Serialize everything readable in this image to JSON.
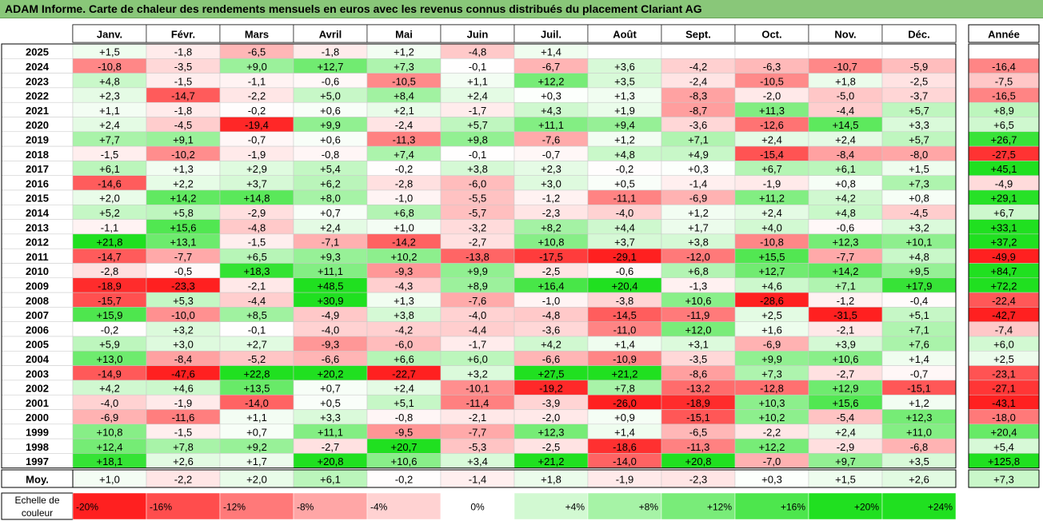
{
  "title": "ADAM Informe. Carte de chaleur des rendements mensuels en euros avec les revenus connus distribués du placement Clariant AG",
  "chart_data": {
    "type": "heatmap",
    "months": [
      "Janv.",
      "Févr.",
      "Mars",
      "Avril",
      "Mai",
      "Juin",
      "Juil.",
      "Août",
      "Sept.",
      "Oct.",
      "Nov.",
      "Déc."
    ],
    "annual_header": "Année",
    "years": [
      "2025",
      "2024",
      "2023",
      "2022",
      "2021",
      "2020",
      "2019",
      "2018",
      "2017",
      "2016",
      "2015",
      "2014",
      "2013",
      "2012",
      "2011",
      "2010",
      "2009",
      "2008",
      "2007",
      "2006",
      "2005",
      "2004",
      "2003",
      "2002",
      "2001",
      "2000",
      "1999",
      "1998",
      "1997"
    ],
    "monthly": [
      [
        1.5,
        -1.8,
        -6.5,
        -1.8,
        1.2,
        -4.8,
        1.4,
        null,
        null,
        null,
        null,
        null
      ],
      [
        -10.8,
        -3.5,
        9.0,
        12.7,
        7.3,
        -0.1,
        -6.7,
        3.6,
        -4.2,
        -6.3,
        -10.7,
        -5.9
      ],
      [
        4.8,
        -1.5,
        -1.1,
        -0.6,
        -10.5,
        1.1,
        12.2,
        3.5,
        -2.4,
        -10.5,
        1.8,
        -2.5
      ],
      [
        2.3,
        -14.7,
        -2.2,
        5.0,
        8.4,
        2.4,
        0.3,
        1.3,
        -8.3,
        -2.0,
        -5.0,
        -3.7
      ],
      [
        1.1,
        -1.8,
        -0.2,
        0.6,
        2.1,
        -1.7,
        4.3,
        1.9,
        -8.7,
        11.3,
        -4.4,
        5.7
      ],
      [
        2.4,
        -4.5,
        -19.4,
        9.9,
        -2.4,
        5.7,
        11.1,
        9.4,
        -3.6,
        -12.6,
        14.5,
        3.3
      ],
      [
        7.7,
        9.1,
        -0.7,
        0.6,
        -11.3,
        9.8,
        -7.6,
        1.2,
        7.1,
        2.4,
        2.4,
        5.7
      ],
      [
        -1.5,
        -10.2,
        -1.9,
        -0.8,
        7.4,
        -0.1,
        -0.7,
        4.8,
        4.9,
        -15.4,
        -8.4,
        -8.0
      ],
      [
        6.1,
        1.3,
        2.9,
        5.4,
        -0.2,
        3.8,
        2.3,
        -0.2,
        0.3,
        6.7,
        6.1,
        1.5
      ],
      [
        -14.6,
        2.2,
        3.7,
        6.2,
        -2.8,
        -6.0,
        3.0,
        0.5,
        -1.4,
        -1.9,
        0.8,
        7.3
      ],
      [
        2.0,
        14.2,
        14.8,
        8.0,
        -1.0,
        -5.5,
        -1.2,
        -11.1,
        -6.9,
        11.2,
        4.2,
        0.8
      ],
      [
        5.2,
        5.8,
        -2.9,
        0.7,
        6.8,
        -5.7,
        -2.3,
        -4.0,
        1.2,
        2.4,
        4.8,
        -4.5
      ],
      [
        -1.1,
        15.6,
        -4.8,
        2.4,
        1.0,
        -3.2,
        8.2,
        4.4,
        1.7,
        4.0,
        -0.6,
        3.2
      ],
      [
        21.8,
        13.1,
        -1.5,
        -7.1,
        -14.2,
        -2.7,
        10.8,
        3.7,
        3.8,
        -10.8,
        12.3,
        10.1
      ],
      [
        -14.7,
        -7.7,
        6.5,
        9.3,
        10.2,
        -13.8,
        -17.5,
        -29.1,
        -12.0,
        15.5,
        -7.7,
        4.8
      ],
      [
        -2.8,
        -0.5,
        18.3,
        11.1,
        -9.3,
        9.9,
        -2.5,
        -0.6,
        6.8,
        12.7,
        14.2,
        9.5
      ],
      [
        -18.9,
        -23.3,
        -2.1,
        48.5,
        -4.3,
        8.9,
        16.4,
        20.4,
        -1.3,
        4.6,
        7.1,
        17.9
      ],
      [
        -15.7,
        5.3,
        -4.4,
        30.9,
        1.3,
        -7.6,
        -1.0,
        -3.8,
        10.6,
        -28.6,
        -1.2,
        -0.4
      ],
      [
        15.9,
        -10.0,
        8.5,
        -4.9,
        3.8,
        -4.0,
        -4.8,
        -14.5,
        -11.9,
        2.5,
        -31.5,
        5.1
      ],
      [
        -0.2,
        3.2,
        -0.1,
        -4.0,
        -4.2,
        -4.4,
        -3.6,
        -11.0,
        12.0,
        1.6,
        -2.1,
        7.1
      ],
      [
        5.9,
        3.0,
        2.7,
        -9.3,
        -6.0,
        -1.7,
        4.2,
        1.4,
        3.1,
        -6.9,
        3.9,
        7.6
      ],
      [
        13.0,
        -8.4,
        -5.2,
        -6.6,
        6.6,
        6.0,
        -6.6,
        -10.9,
        -3.5,
        9.9,
        10.6,
        1.4
      ],
      [
        -14.9,
        -47.6,
        22.8,
        20.2,
        -22.7,
        3.2,
        27.5,
        21.2,
        -8.6,
        7.3,
        -2.7,
        -0.7
      ],
      [
        4.2,
        4.6,
        13.5,
        0.7,
        2.4,
        -10.1,
        -19.2,
        7.8,
        -13.2,
        -12.8,
        12.9,
        -15.1
      ],
      [
        -4.0,
        -1.9,
        -14.0,
        0.5,
        5.1,
        -11.4,
        -3.9,
        -26.0,
        -18.9,
        10.3,
        15.6,
        1.2
      ],
      [
        -6.9,
        -11.6,
        1.1,
        3.3,
        -0.8,
        -2.1,
        -2.0,
        0.9,
        -15.1,
        10.2,
        -5.4,
        12.3
      ],
      [
        10.8,
        -1.5,
        0.7,
        11.1,
        -9.5,
        -7.7,
        12.3,
        1.4,
        -6.5,
        -2.2,
        2.4,
        11.0
      ],
      [
        12.4,
        7.8,
        9.2,
        -2.7,
        20.7,
        -5.3,
        -2.5,
        -18.6,
        -11.3,
        12.2,
        -2.9,
        -6.8
      ],
      [
        18.1,
        2.6,
        1.7,
        20.8,
        10.6,
        3.4,
        21.2,
        -14.0,
        20.8,
        -7.0,
        9.7,
        3.5
      ]
    ],
    "annual": [
      null,
      -16.4,
      -7.5,
      -16.5,
      8.9,
      6.5,
      26.7,
      -27.5,
      45.1,
      -4.9,
      29.1,
      6.7,
      33.1,
      37.2,
      -49.9,
      84.7,
      72.2,
      -22.4,
      -42.7,
      -7.4,
      6.0,
      2.5,
      -23.1,
      -27.1,
      -43.1,
      -18.0,
      20.4,
      5.4,
      125.8
    ],
    "average_label": "Moy.",
    "average": [
      1.0,
      -2.2,
      2.0,
      6.1,
      -0.2,
      -1.4,
      1.8,
      -1.9,
      -2.3,
      0.3,
      1.5,
      2.6
    ],
    "average_annual": 7.3,
    "color_scale": {
      "label_line1": "Echelle de",
      "label_line2": "couleur",
      "steps": [
        "-20%",
        "-16%",
        "-12%",
        "-8%",
        "-4%",
        "0%",
        "+4%",
        "+8%",
        "+12%",
        "+16%",
        "+20%",
        "+24%"
      ],
      "negative_color": "#ff2020",
      "neutral_color": "#ffffff",
      "positive_color": "#20e020"
    }
  }
}
